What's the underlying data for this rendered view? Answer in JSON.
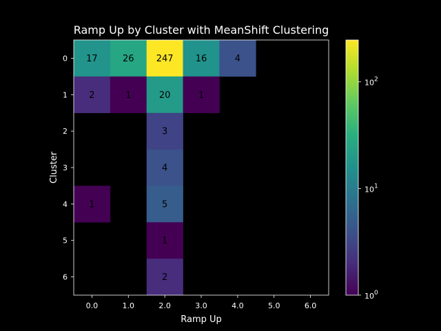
{
  "chart_data": {
    "type": "heatmap",
    "title": "Ramp Up by Cluster with MeanShift Clustering",
    "xlabel": "Ramp Up",
    "ylabel": "Cluster",
    "x_ticks": [
      "0.0",
      "1.0",
      "2.0",
      "3.0",
      "4.0",
      "5.0",
      "6.0"
    ],
    "y_ticks": [
      "0",
      "1",
      "2",
      "3",
      "4",
      "5",
      "6"
    ],
    "colorscale": "viridis",
    "color_scale_type": "log",
    "color_range": [
      1,
      247
    ],
    "colorbar_ticks": [
      {
        "base": "10",
        "exp": "0",
        "value": 1
      },
      {
        "base": "10",
        "exp": "1",
        "value": 10
      },
      {
        "base": "10",
        "exp": "2",
        "value": 100
      }
    ],
    "values": [
      [
        17,
        26,
        247,
        16,
        4,
        null,
        null
      ],
      [
        2,
        1,
        20,
        1,
        null,
        null,
        null
      ],
      [
        null,
        null,
        3,
        null,
        null,
        null,
        null
      ],
      [
        null,
        null,
        4,
        null,
        null,
        null,
        null
      ],
      [
        1,
        null,
        5,
        null,
        null,
        null,
        null
      ],
      [
        null,
        null,
        1,
        null,
        null,
        null,
        null
      ],
      [
        null,
        null,
        2,
        null,
        null,
        null,
        null
      ]
    ],
    "background_color": "#000000"
  }
}
